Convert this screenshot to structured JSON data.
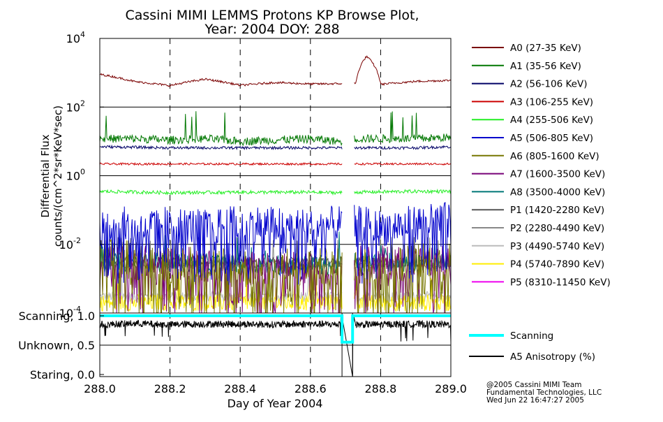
{
  "title": {
    "line1": "Cassini MIMI LEMMS Protons KP Browse Plot,",
    "line2": "Year: 2004 DOY: 288"
  },
  "footer": {
    "line1": "@2005 Cassini MIMI Team",
    "line2": "Fundamental Technologies, LLC",
    "line3": "Wed Jun 22 16:47:27 2005"
  },
  "chart_data": [
    {
      "type": "line",
      "panel": "flux",
      "ylabel": "Differential Flux",
      "ylabel2": "counts/(cm^2*sr*KeV*sec)",
      "yscale": "log",
      "ylim": [
        0.0001,
        10000
      ],
      "y_ticks": [
        {
          "base": "10",
          "exp": "-4",
          "value": 0.0001
        },
        {
          "base": "10",
          "exp": "-2",
          "value": 0.01
        },
        {
          "base": "10",
          "exp": "0",
          "value": 1
        },
        {
          "base": "10",
          "exp": "2",
          "value": 100
        },
        {
          "base": "10",
          "exp": "4",
          "value": 10000
        }
      ],
      "xlim": [
        288.0,
        289.0
      ],
      "data_gap": [
        288.69,
        288.725
      ],
      "legend_position": "right",
      "series": [
        {
          "name": "A0 (27-35 KeV)",
          "color": "#7a0000",
          "values": [
            [
              288.0,
              900
            ],
            [
              288.1,
              550
            ],
            [
              288.2,
              420
            ],
            [
              288.3,
              650
            ],
            [
              288.4,
              430
            ],
            [
              288.5,
              520
            ],
            [
              288.6,
              470
            ],
            [
              288.68,
              480
            ],
            [
              288.73,
              500
            ],
            [
              288.76,
              3000
            ],
            [
              288.8,
              460
            ],
            [
              288.9,
              560
            ],
            [
              289.0,
              600
            ]
          ]
        },
        {
          "name": "A1 (35-56 KeV)",
          "color": "#007700",
          "values": [
            [
              288.0,
              12
            ],
            [
              288.1,
              12
            ],
            [
              288.2,
              11
            ],
            [
              288.3,
              12
            ],
            [
              288.4,
              10
            ],
            [
              288.5,
              11
            ],
            [
              288.6,
              12
            ],
            [
              288.68,
              10
            ],
            [
              288.73,
              12
            ],
            [
              288.8,
              12
            ],
            [
              288.9,
              12
            ],
            [
              289.0,
              13
            ]
          ]
        },
        {
          "name": "A2 (56-106 KeV)",
          "color": "#000066",
          "values": [
            [
              288.0,
              7
            ],
            [
              288.2,
              6.5
            ],
            [
              288.4,
              6.5
            ],
            [
              288.6,
              6.5
            ],
            [
              288.68,
              6.5
            ],
            [
              288.73,
              6.5
            ],
            [
              288.9,
              6.5
            ],
            [
              289.0,
              7
            ]
          ]
        },
        {
          "name": "A3 (106-255 KeV)",
          "color": "#cc0000",
          "values": [
            [
              288.0,
              2.2
            ],
            [
              288.2,
              2.2
            ],
            [
              288.4,
              2.2
            ],
            [
              288.6,
              2.2
            ],
            [
              288.68,
              2.2
            ],
            [
              288.73,
              2.2
            ],
            [
              288.9,
              2.2
            ],
            [
              289.0,
              2.2
            ]
          ]
        },
        {
          "name": "A4 (255-506 KeV)",
          "color": "#22ee22",
          "values": [
            [
              288.0,
              0.35
            ],
            [
              288.2,
              0.32
            ],
            [
              288.4,
              0.33
            ],
            [
              288.6,
              0.33
            ],
            [
              288.68,
              0.32
            ],
            [
              288.73,
              0.33
            ],
            [
              288.9,
              0.35
            ],
            [
              289.0,
              0.35
            ]
          ]
        },
        {
          "name": "A5 (506-805 KeV)",
          "color": "#0000cc",
          "values": [
            [
              288.0,
              0.05
            ],
            [
              288.1,
              0.03
            ],
            [
              288.2,
              0.04
            ],
            [
              288.3,
              0.03
            ],
            [
              288.4,
              0.04
            ],
            [
              288.5,
              0.04
            ],
            [
              288.6,
              0.03
            ],
            [
              288.68,
              0.04
            ],
            [
              288.73,
              0.04
            ],
            [
              288.8,
              0.03
            ],
            [
              288.9,
              0.04
            ],
            [
              289.0,
              0.05
            ]
          ]
        },
        {
          "name": "A6 (805-1600 KeV)",
          "color": "#777700",
          "values": [
            [
              288.0,
              0.004
            ],
            [
              288.2,
              0.003
            ],
            [
              288.4,
              0.002
            ],
            [
              288.6,
              0.002
            ],
            [
              288.68,
              0.002
            ],
            [
              288.73,
              0.003
            ],
            [
              288.9,
              0.003
            ],
            [
              289.0,
              0.003
            ]
          ]
        },
        {
          "name": "A7 (1600-3500 KeV)",
          "color": "#770077",
          "values": [
            [
              288.0,
              0.003
            ],
            [
              288.2,
              0.003
            ],
            [
              288.4,
              0.002
            ],
            [
              288.6,
              0.002
            ],
            [
              288.68,
              0.002
            ],
            [
              288.73,
              0.003
            ],
            [
              288.9,
              0.003
            ],
            [
              289.0,
              0.003
            ]
          ]
        },
        {
          "name": "A8 (3500-4000 KeV)",
          "color": "#007777",
          "values": [
            [
              288.0,
              0.003
            ],
            [
              288.2,
              0.003
            ],
            [
              288.4,
              0.0025
            ],
            [
              288.6,
              0.0025
            ],
            [
              288.68,
              0.0025
            ],
            [
              288.73,
              0.003
            ],
            [
              288.9,
              0.003
            ],
            [
              289.0,
              0.003
            ]
          ]
        },
        {
          "name": "P1 (1420-2280 KeV)",
          "color": "#555555",
          "values": [
            [
              288.0,
              0.003
            ],
            [
              288.2,
              0.003
            ],
            [
              288.4,
              0.003
            ],
            [
              288.6,
              0.003
            ],
            [
              288.68,
              0.003
            ],
            [
              288.73,
              0.003
            ],
            [
              288.9,
              0.003
            ],
            [
              289.0,
              0.003
            ]
          ]
        },
        {
          "name": "P2 (2280-4490 KeV)",
          "color": "#888888",
          "values": [
            [
              288.0,
              0.0025
            ],
            [
              288.2,
              0.0025
            ],
            [
              288.4,
              0.0025
            ],
            [
              288.6,
              0.0025
            ],
            [
              288.68,
              0.0025
            ],
            [
              288.73,
              0.0025
            ],
            [
              288.9,
              0.0025
            ],
            [
              289.0,
              0.0025
            ]
          ]
        },
        {
          "name": "P3 (4490-5740 KeV)",
          "color": "#bbbbbb",
          "values": [
            [
              288.0,
              0.0003
            ],
            [
              288.2,
              0.0003
            ],
            [
              288.4,
              0.0003
            ],
            [
              288.6,
              0.0003
            ],
            [
              288.68,
              0.0003
            ],
            [
              288.73,
              0.0003
            ],
            [
              288.9,
              0.0003
            ],
            [
              289.0,
              0.0003
            ]
          ]
        },
        {
          "name": "P4 (5740-7890 KeV)",
          "color": "#ffee00",
          "values": [
            [
              288.0,
              0.0002
            ],
            [
              288.2,
              0.0002
            ],
            [
              288.4,
              0.0002
            ],
            [
              288.6,
              0.0002
            ],
            [
              288.68,
              0.0002
            ],
            [
              288.73,
              0.0002
            ],
            [
              288.9,
              0.0002
            ],
            [
              289.0,
              0.0002
            ]
          ]
        },
        {
          "name": "P5 (8310-11450 KeV)",
          "color": "#ee00ee",
          "values": []
        }
      ]
    },
    {
      "type": "line",
      "panel": "scanning",
      "yscale": "linear",
      "ylim": [
        0.0,
        1.0
      ],
      "xlim": [
        288.0,
        289.0
      ],
      "xlabel": "Day of Year 2004",
      "x_ticks": [
        "288.0",
        "288.2",
        "288.4",
        "288.6",
        "288.8",
        "289.0"
      ],
      "y_ticks": [
        {
          "label": "Scanning, 1.0",
          "value": 1.0
        },
        {
          "label": "Unknown, 0.5",
          "value": 0.5
        },
        {
          "label": "Staring, 0.0",
          "value": 0.0
        }
      ],
      "legend_position": "right",
      "series": [
        {
          "name": "Scanning",
          "color": "#00ffff",
          "values": [
            [
              288.0,
              1.0
            ],
            [
              288.69,
              1.0
            ],
            [
              288.69,
              0.55
            ],
            [
              288.72,
              0.55
            ],
            [
              288.72,
              1.0
            ],
            [
              289.0,
              1.0
            ]
          ]
        },
        {
          "name": "A5 Anisotropy (%)",
          "color": "#000000",
          "values": [
            [
              288.0,
              0.85
            ],
            [
              288.1,
              0.87
            ],
            [
              288.2,
              0.85
            ],
            [
              288.3,
              0.86
            ],
            [
              288.4,
              0.86
            ],
            [
              288.5,
              0.85
            ],
            [
              288.6,
              0.86
            ],
            [
              288.68,
              0.85
            ],
            [
              288.69,
              1.0
            ],
            [
              288.69,
              0.0
            ],
            [
              288.72,
              0.0
            ],
            [
              288.72,
              1.0
            ],
            [
              288.73,
              0.85
            ],
            [
              288.9,
              0.86
            ],
            [
              289.0,
              0.85
            ]
          ]
        }
      ]
    }
  ]
}
